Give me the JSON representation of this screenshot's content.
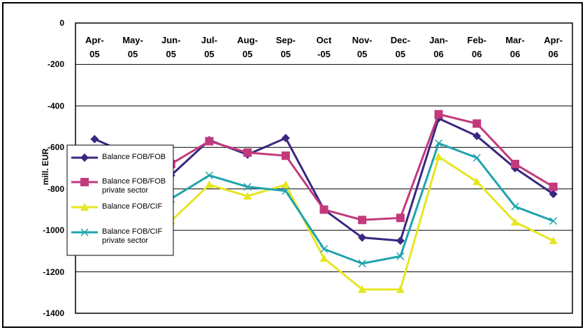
{
  "chart_data": {
    "type": "line",
    "y_label": "mill. EUR",
    "categories": [
      "Apr-\n05",
      "May-\n05",
      "Jun-\n05",
      "Jul-\n05",
      "Aug-\n05",
      "Sep-\n05",
      "Oct\n-05",
      "Nov-\n05",
      "Dec-\n05",
      "Jan-\n06",
      "Feb-\n06",
      "Mar-\n06",
      "Apr-\n06"
    ],
    "series": [
      {
        "name": "Balance FOB/FOB",
        "color": "#3b2680",
        "marker": "diamond",
        "values": [
          -560,
          -640,
          -735,
          -565,
          -635,
          -555,
          -900,
          -1035,
          -1050,
          -460,
          -545,
          -700,
          -825
        ]
      },
      {
        "name": "Balance FOB/FOB\nprivate sector",
        "color": "#c23a7c",
        "marker": "square",
        "values": [
          -620,
          -650,
          -680,
          -570,
          -625,
          -640,
          -900,
          -950,
          -940,
          -440,
          -485,
          -680,
          -790
        ]
      },
      {
        "name": "Balance FOB/CIF",
        "color": "#e6e622",
        "marker": "triangle",
        "values": [
          -900,
          -1000,
          -955,
          -780,
          -835,
          -780,
          -1135,
          -1285,
          -1285,
          -645,
          -765,
          -960,
          -1050
        ]
      },
      {
        "name": "Balance FOB/CIF\nprivate sector",
        "color": "#1fa3ad",
        "marker": "x",
        "values": [
          -820,
          -870,
          -848,
          -735,
          -790,
          -810,
          -1090,
          -1160,
          -1125,
          -580,
          -650,
          -885,
          -955
        ]
      }
    ],
    "ylim": [
      -1400,
      0
    ],
    "yticks": [
      0,
      -200,
      -400,
      -600,
      -800,
      -1000,
      -1200,
      -1400
    ],
    "grid": true
  }
}
